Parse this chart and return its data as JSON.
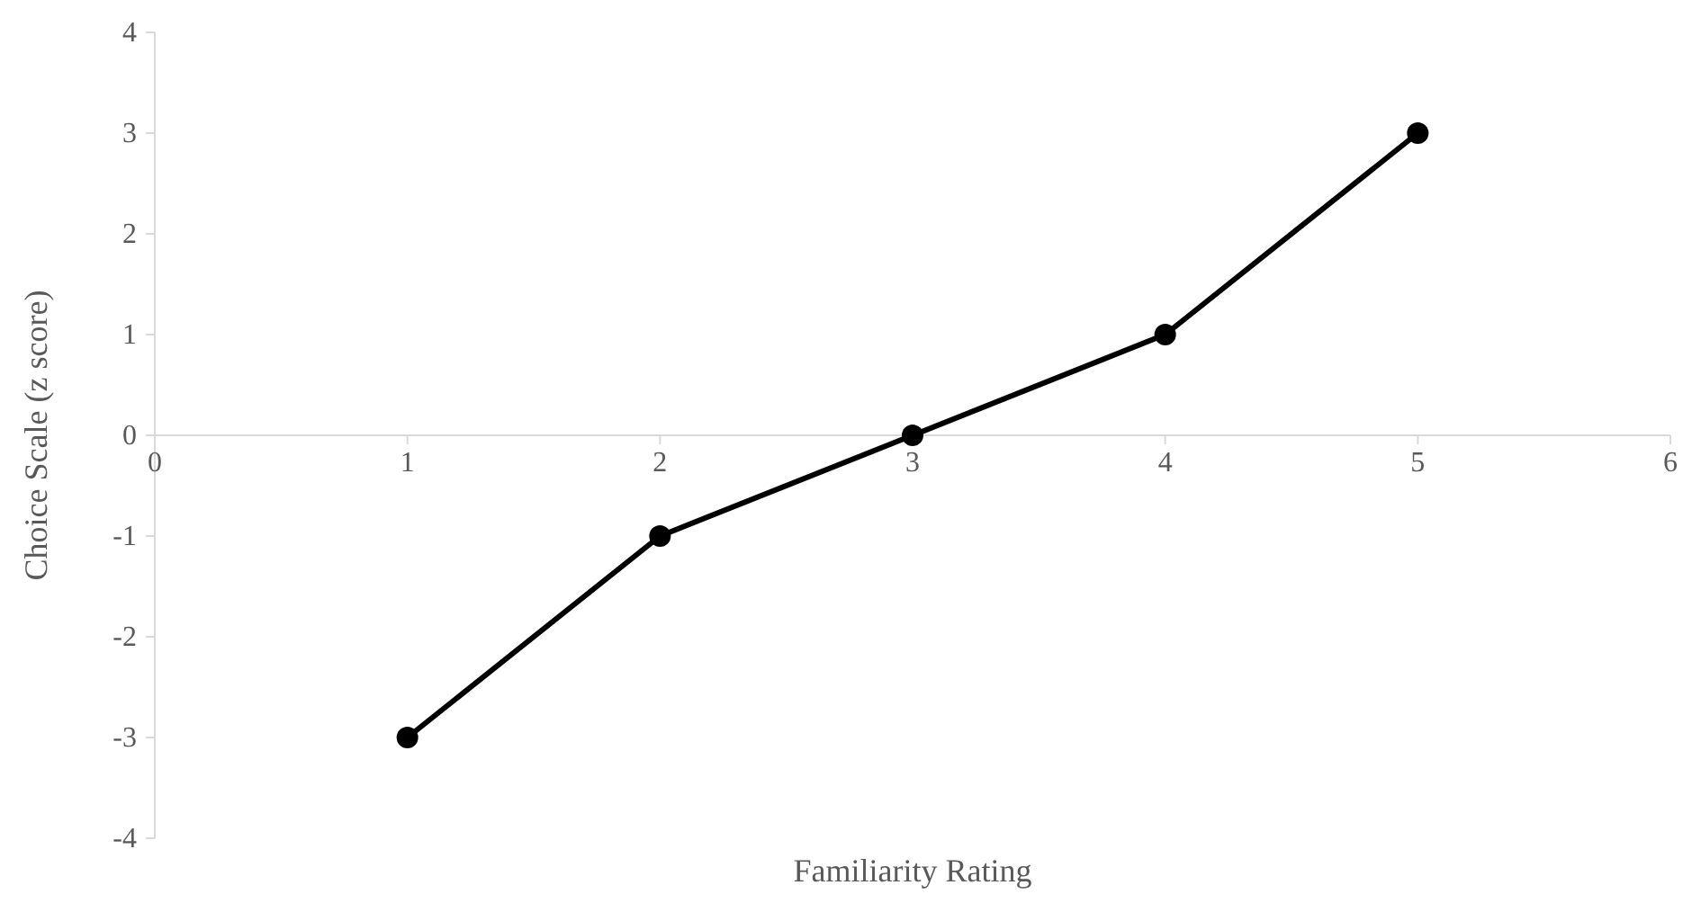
{
  "chart_data": {
    "type": "line",
    "xlabel": "Familiarity Rating",
    "ylabel": "Choice Scale (z score)",
    "x": [
      1,
      2,
      3,
      4,
      5
    ],
    "series": [
      {
        "color": "#000000",
        "values": [
          -3,
          -1,
          0,
          1,
          3
        ]
      }
    ],
    "xlim": [
      0,
      6
    ],
    "xticks": [
      0,
      1,
      2,
      3,
      4,
      5,
      6
    ],
    "ylim": [
      -4,
      4
    ],
    "yticks": [
      -4,
      -3,
      -2,
      -1,
      0,
      1,
      2,
      3,
      4
    ],
    "marker": "circle",
    "line_style": "solid"
  }
}
